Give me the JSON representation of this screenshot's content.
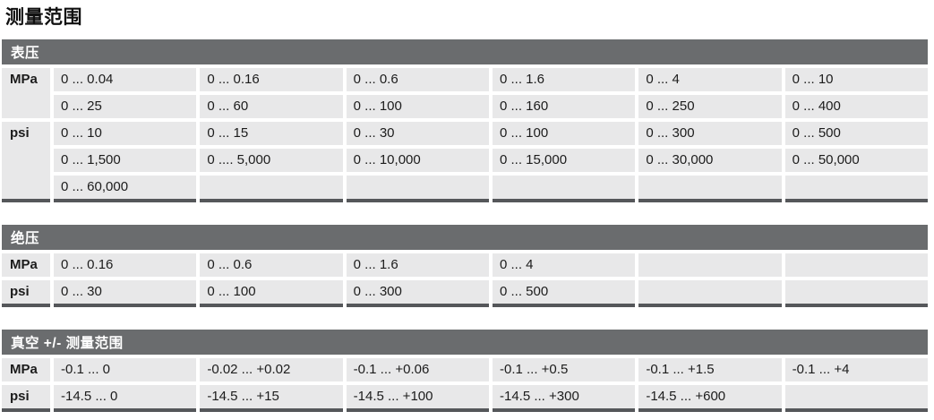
{
  "title": "测量范围",
  "colors": {
    "header_bar_bg": "#6a6c6e",
    "header_bar_text": "#ffffff",
    "cell_bg": "#e8e8e9",
    "cell_text": "#1c1c1c",
    "table_bottom_border": "#55575a",
    "title_text": "#101010"
  },
  "tables": [
    {
      "id": "gauge-pressure",
      "header": "表压",
      "columns": 6,
      "groups": [
        {
          "unit": "MPa",
          "rows": [
            [
              "0 ... 0.04",
              "0 ... 0.16",
              "0 ... 0.6",
              "0 ... 1.6",
              "0 ... 4",
              "0 ... 10"
            ],
            [
              "0 ... 25",
              "0 ... 60",
              "0 ... 100",
              "0 ... 160",
              "0 ... 250",
              "0 ... 400"
            ]
          ]
        },
        {
          "unit": "psi",
          "rows": [
            [
              "0 ... 10",
              "0 ... 15",
              "0 ... 30",
              "0 ... 100",
              "0 ... 300",
              "0 ... 500"
            ],
            [
              "0 ... 1,500",
              "0 .... 5,000",
              "0 ... 10,000",
              "0 ... 15,000",
              "0 ... 30,000",
              "0 ... 50,000"
            ],
            [
              "0 ... 60,000",
              "",
              "",
              "",
              "",
              ""
            ]
          ]
        }
      ]
    },
    {
      "id": "absolute-pressure",
      "header": "绝压",
      "columns": 6,
      "groups": [
        {
          "unit": "MPa",
          "rows": [
            [
              "0 ... 0.16",
              "0 ... 0.6",
              "0 ... 1.6",
              "0 ... 4",
              "",
              ""
            ]
          ]
        },
        {
          "unit": "psi",
          "rows": [
            [
              "0 ... 30",
              "0 ... 100",
              "0 ... 300",
              "0 ... 500",
              "",
              ""
            ]
          ]
        }
      ]
    },
    {
      "id": "vacuum-range",
      "header": "真空 +/- 测量范围",
      "columns": 6,
      "groups": [
        {
          "unit": "MPa",
          "rows": [
            [
              "-0.1 ... 0",
              "-0.02 ... +0.02",
              "-0.1 ... +0.06",
              "-0.1 ... +0.5",
              "-0.1 ... +1.5",
              "-0.1 ... +4"
            ]
          ]
        },
        {
          "unit": "psi",
          "rows": [
            [
              "-14.5 ... 0",
              "-14.5 ... +15",
              "-14.5 ... +100",
              "-14.5 ... +300",
              "-14.5 ... +600",
              ""
            ]
          ]
        }
      ]
    }
  ]
}
